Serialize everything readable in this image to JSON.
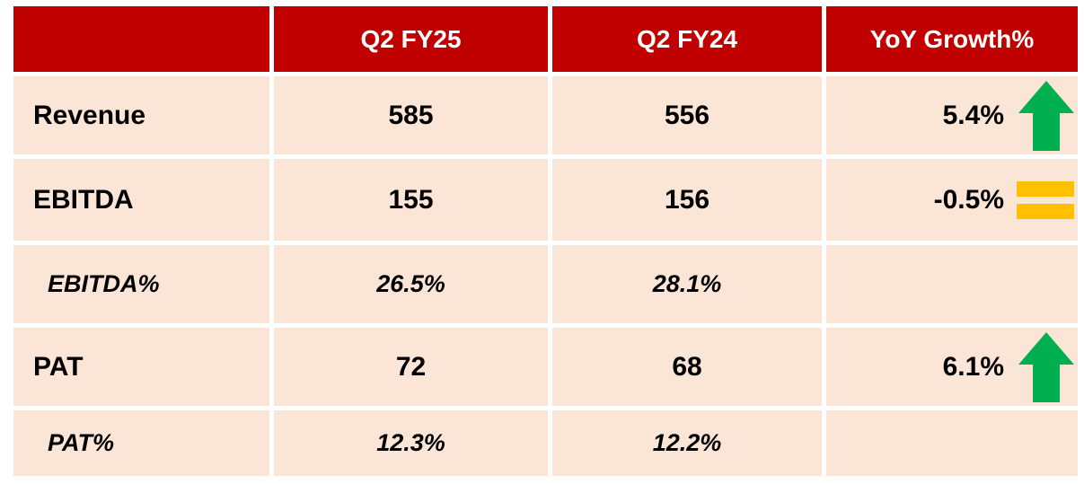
{
  "table": {
    "columns": [
      "Q2 FY25",
      "Q2 FY24",
      "YoY Growth%"
    ],
    "rows": [
      [
        "Revenue",
        "585",
        "556",
        "5.4%"
      ],
      [
        "EBITDA",
        "155",
        "156",
        "-0.5%"
      ],
      [
        "EBITDA%",
        "26.5%",
        "28.1%"
      ],
      [
        "PAT",
        "72",
        "68",
        "6.1%"
      ],
      [
        "PAT%",
        "12.3%",
        "12.2%"
      ]
    ]
  }
}
